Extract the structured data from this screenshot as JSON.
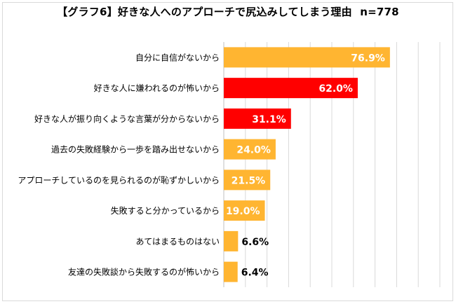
{
  "chart_data": {
    "type": "bar",
    "orientation": "horizontal",
    "title": "【グラフ6】好きな人へのアプローチで尻込みしてしまう理由",
    "sample_size": "n=778",
    "categories": [
      "自分に自信がないから",
      "好きな人に嫌われるのが怖いから",
      "好きな人が振り向くような言葉が分からないから",
      "過去の失敗経験から一歩を踏み出せないから",
      "アプローチしているのを見られるのが恥ずかしいから",
      "失敗すると分かっているから",
      "あてはまるものはない",
      "友達の失敗談から失敗するのが怖いから"
    ],
    "values": [
      76.9,
      62.0,
      31.1,
      24.0,
      21.5,
      19.0,
      6.6,
      6.4
    ],
    "value_labels": [
      "76.9%",
      "62.0%",
      "31.1%",
      "24.0%",
      "21.5%",
      "19.0%",
      "6.6%",
      "6.4%"
    ],
    "highlighted": [
      false,
      true,
      true,
      false,
      false,
      false,
      false,
      false
    ],
    "xlim": [
      0,
      100
    ],
    "grid": true,
    "colors": {
      "bar": "#FFB531",
      "highlight": "#FF0000",
      "grid": "#d9d9d9"
    }
  }
}
